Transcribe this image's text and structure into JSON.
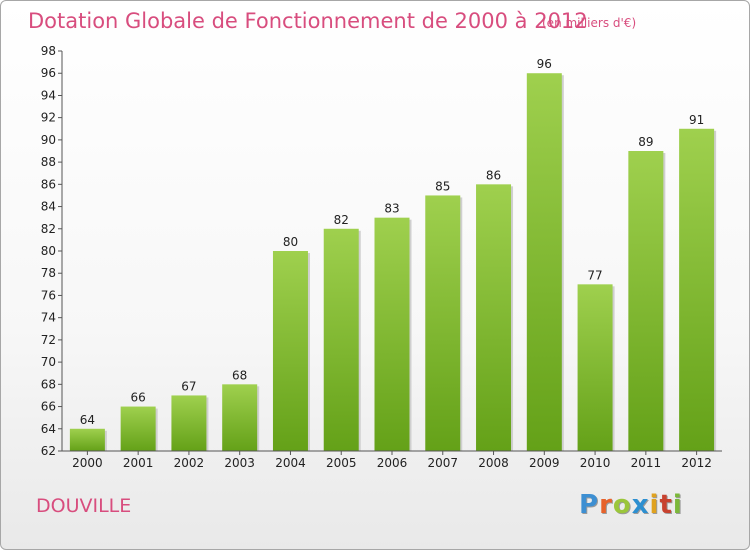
{
  "header": {
    "title": "Dotation Globale de Fonctionnement de 2000 à 2012",
    "subtitle": "(en milliers d'€)"
  },
  "footer": {
    "commune": "DOUVILLE",
    "logo_letters": [
      "P",
      "r",
      "o",
      "x",
      "i",
      "t",
      "i"
    ],
    "logo_colors": [
      "#3d8fd2",
      "#e7622b",
      "#9bc63b",
      "#2d8fd0",
      "#e0a21f",
      "#c8422f",
      "#7cb83a"
    ]
  },
  "chart_data": {
    "type": "bar",
    "categories": [
      "2000",
      "2001",
      "2002",
      "2003",
      "2004",
      "2005",
      "2006",
      "2007",
      "2008",
      "2009",
      "2010",
      "2011",
      "2012"
    ],
    "values": [
      64,
      66,
      67,
      68,
      80,
      82,
      83,
      85,
      86,
      96,
      77,
      89,
      91
    ],
    "title": "Dotation Globale de Fonctionnement de 2000 à 2012",
    "xlabel": "",
    "ylabel": "",
    "ylim": [
      62,
      98
    ],
    "yticks": [
      62,
      64,
      66,
      68,
      70,
      72,
      74,
      76,
      78,
      80,
      82,
      84,
      86,
      88,
      90,
      92,
      94,
      96,
      98
    ],
    "grid": false,
    "bar_color_top": "#9fd04e",
    "bar_color_bottom": "#64a118"
  }
}
